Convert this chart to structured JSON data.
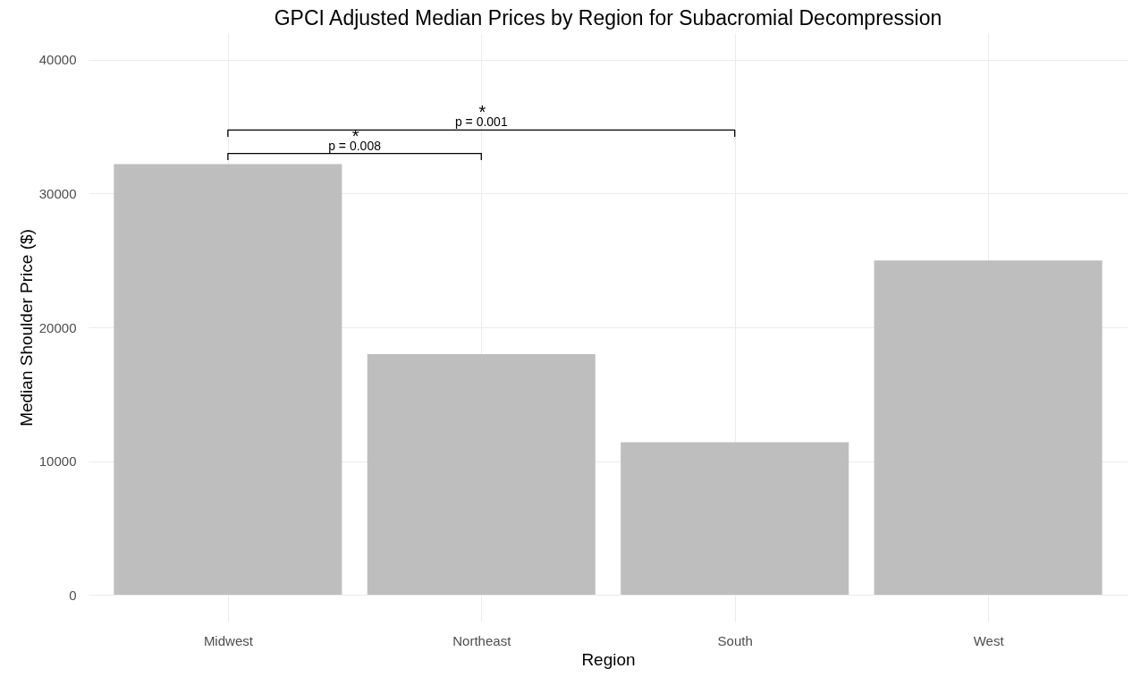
{
  "chart_data": {
    "type": "bar",
    "title": "GPCI Adjusted Median Prices by Region for Subacromial Decompression",
    "xlabel": "Region",
    "ylabel": "Median Shoulder Price ($)",
    "categories": [
      "Midwest",
      "Northeast",
      "South",
      "West"
    ],
    "values": [
      32200,
      18000,
      11400,
      25000
    ],
    "color": "#bebebe",
    "ylim": [
      -2000,
      42000
    ],
    "yticks": [
      0,
      10000,
      20000,
      30000,
      40000
    ],
    "grid": true,
    "annotations": [
      "p = 0.008",
      "p = 0.001",
      "*",
      "*"
    ]
  }
}
